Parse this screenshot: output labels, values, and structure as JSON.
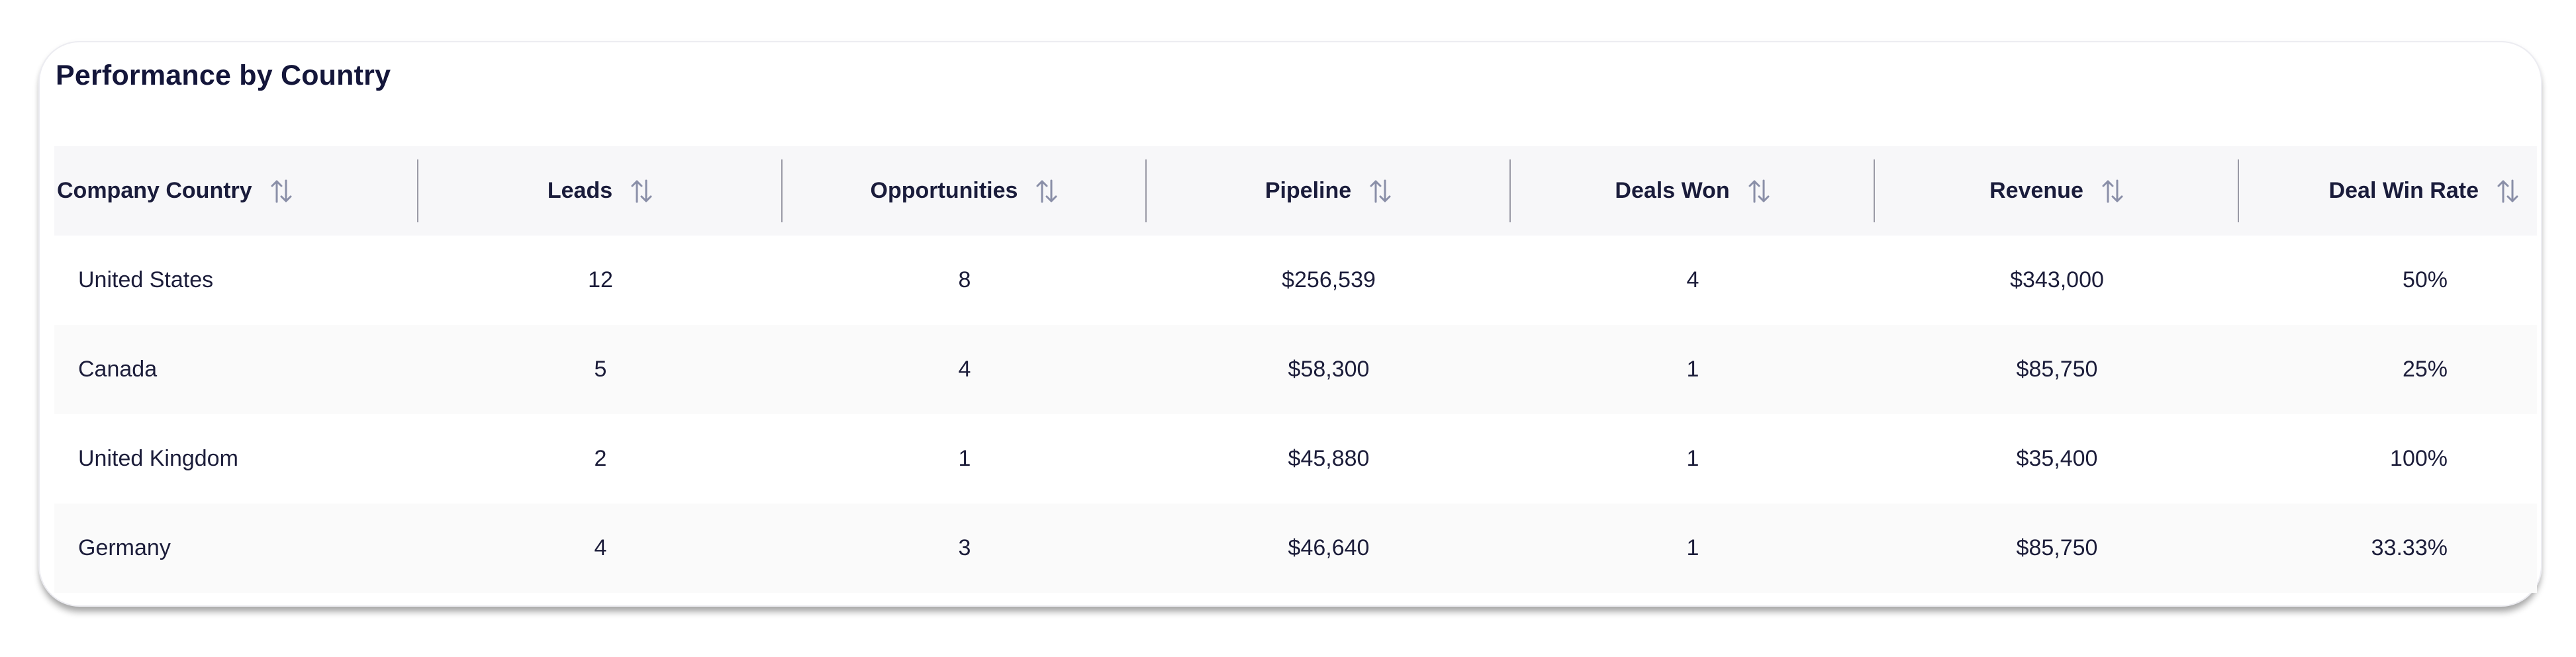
{
  "card": {
    "title": "Performance by Country"
  },
  "table": {
    "columns": [
      {
        "label": "Company Country",
        "sort_icon": "sort-arrows-icon"
      },
      {
        "label": "Leads",
        "sort_icon": "sort-arrows-icon"
      },
      {
        "label": "Opportunities",
        "sort_icon": "sort-arrows-icon"
      },
      {
        "label": "Pipeline",
        "sort_icon": "sort-arrows-icon"
      },
      {
        "label": "Deals Won",
        "sort_icon": "sort-arrows-icon"
      },
      {
        "label": "Revenue",
        "sort_icon": "sort-arrows-icon"
      },
      {
        "label": "Deal Win Rate",
        "sort_icon": "sort-arrows-icon"
      }
    ],
    "rows": [
      {
        "country": "United States",
        "leads": "12",
        "opportunities": "8",
        "pipeline": "$256,539",
        "deals_won": "4",
        "revenue": "$343,000",
        "win_rate": "50%"
      },
      {
        "country": "Canada",
        "leads": "5",
        "opportunities": "4",
        "pipeline": "$58,300",
        "deals_won": "1",
        "revenue": "$85,750",
        "win_rate": "25%"
      },
      {
        "country": "United Kingdom",
        "leads": "2",
        "opportunities": "1",
        "pipeline": "$45,880",
        "deals_won": "1",
        "revenue": "$35,400",
        "win_rate": "100%"
      },
      {
        "country": "Germany",
        "leads": "4",
        "opportunities": "3",
        "pipeline": "$46,640",
        "deals_won": "1",
        "revenue": "$85,750",
        "win_rate": "33.33%"
      }
    ]
  },
  "colors": {
    "text": "#1c1d3a",
    "header_bg": "#f7f7f9",
    "alt_row_bg": "#fafafa",
    "divider": "#9a9aa6",
    "sort_icon": "#8a8fa8"
  }
}
